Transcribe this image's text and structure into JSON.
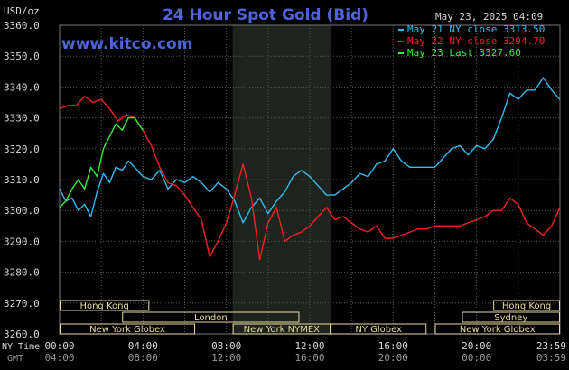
{
  "header": {
    "title": "24 Hour Spot Gold (Bid)",
    "site": "www.kitco.com",
    "timestamp": "May 23, 2025 04:09",
    "unit": "USD/oz"
  },
  "legend": [
    {
      "text": "May 21 NY close 3313.50",
      "color": "#33bbee"
    },
    {
      "text": "May 22 NY close 3294.70",
      "color": "#ee2222"
    },
    {
      "text": "May 23 Last 3327.60",
      "color": "#33ee33"
    }
  ],
  "colors": {
    "background": "#000000",
    "grid": "#555555",
    "axis_text": "#d8d8d8",
    "title": "#4f63dd",
    "session_box": "#e8dca0",
    "nymex_shade": "#1e231e"
  },
  "sessions": [
    {
      "label": "Hong Kong",
      "row": 0,
      "start": 0,
      "end": 4.3
    },
    {
      "label": "Hong Kong",
      "row": 0,
      "start": 20.8,
      "end": 24
    },
    {
      "label": "London",
      "row": 1,
      "start": 3.0,
      "end": 11.5
    },
    {
      "label": "Sydney",
      "row": 1,
      "start": 19.3,
      "end": 24
    },
    {
      "label": "New York Globex",
      "row": 2,
      "start": 0,
      "end": 6.5
    },
    {
      "label": "New York NYMEX",
      "row": 2,
      "start": 8.3,
      "end": 13.0
    },
    {
      "label": "NY Globex",
      "row": 2,
      "start": 13.0,
      "end": 17.6
    },
    {
      "label": "New York Globex",
      "row": 2,
      "start": 18.0,
      "end": 24
    }
  ],
  "time_labels": {
    "row1_label": "NY Time",
    "row2_label": "GMT",
    "ny": [
      "00:00",
      "04:00",
      "08:00",
      "12:00",
      "16:00",
      "20:00",
      "23:59"
    ],
    "gmt": [
      "04:00",
      "08:00",
      "12:00",
      "16:00",
      "20:00",
      "00:00",
      "03:59"
    ]
  },
  "chart_data": {
    "type": "line",
    "title": "24 Hour Spot Gold (Bid)",
    "ylabel": "USD/oz",
    "ylim": [
      3260,
      3360
    ],
    "xlim": [
      0,
      24
    ],
    "grid": true,
    "yticks": [
      "3360.0",
      "3350.0",
      "3340.0",
      "3330.0",
      "3320.0",
      "3310.0",
      "3300.0",
      "3290.0",
      "3280.0",
      "3270.0",
      "3260.0"
    ],
    "nymex_shade": [
      8.3,
      13.0
    ],
    "series": [
      {
        "name": "May 21 NY close 3313.50",
        "color": "#33bbee",
        "x": [
          0,
          0.3,
          0.6,
          0.9,
          1.2,
          1.5,
          1.8,
          2.1,
          2.4,
          2.7,
          3.0,
          3.3,
          3.6,
          4.0,
          4.4,
          4.8,
          5.2,
          5.6,
          6.0,
          6.4,
          6.8,
          7.2,
          7.6,
          8.0,
          8.4,
          8.8,
          9.2,
          9.6,
          10.0,
          10.4,
          10.8,
          11.2,
          11.6,
          12.0,
          12.4,
          12.8,
          13.2,
          13.6,
          14.0,
          14.4,
          14.8,
          15.2,
          15.6,
          16.0,
          16.4,
          16.8,
          17.2,
          17.6,
          18.0,
          18.4,
          18.8,
          19.2,
          19.6,
          20.0,
          20.4,
          20.8,
          21.2,
          21.6,
          22.0,
          22.4,
          22.8,
          23.2,
          23.6,
          23.99
        ],
        "y": [
          3307,
          3303,
          3304,
          3300,
          3302,
          3298,
          3306,
          3312,
          3309,
          3314,
          3313,
          3316,
          3314,
          3311,
          3310,
          3313,
          3307,
          3310,
          3309,
          3311,
          3309,
          3306,
          3309,
          3307,
          3303,
          3296,
          3301,
          3304,
          3299,
          3303,
          3306,
          3311,
          3313,
          3311,
          3308,
          3305,
          3305,
          3307,
          3309,
          3312,
          3311,
          3315,
          3316,
          3320,
          3316,
          3314,
          3314,
          3314,
          3314,
          3317,
          3320,
          3321,
          3318,
          3321,
          3320,
          3323,
          3330,
          3338,
          3336,
          3339,
          3339,
          3343,
          3339,
          3336
        ]
      },
      {
        "name": "May 22 NY close 3294.70",
        "color": "#ee2222",
        "x": [
          0,
          0.4,
          0.8,
          1.2,
          1.6,
          2.0,
          2.4,
          2.8,
          3.2,
          3.6,
          4.0,
          4.4,
          4.8,
          5.2,
          5.6,
          6.0,
          6.4,
          6.8,
          7.2,
          7.6,
          8.0,
          8.4,
          8.8,
          9.2,
          9.6,
          10.0,
          10.4,
          10.8,
          11.2,
          11.6,
          12.0,
          12.4,
          12.8,
          13.2,
          13.6,
          14.0,
          14.4,
          14.8,
          15.2,
          15.6,
          16.0,
          16.4,
          16.8,
          17.2,
          17.6,
          18.0,
          18.4,
          18.8,
          19.2,
          19.6,
          20.0,
          20.4,
          20.8,
          21.2,
          21.6,
          22.0,
          22.4,
          22.8,
          23.2,
          23.6,
          23.99
        ],
        "y": [
          3333,
          3334,
          3334,
          3337,
          3335,
          3336,
          3333,
          3329,
          3331,
          3330,
          3326,
          3321,
          3314,
          3309,
          3308,
          3305,
          3301,
          3297,
          3285,
          3290,
          3296,
          3305,
          3315,
          3304,
          3284,
          3296,
          3301,
          3290,
          3292,
          3293,
          3295,
          3298,
          3301,
          3297,
          3298,
          3296,
          3294,
          3293,
          3295,
          3291,
          3291,
          3292,
          3293,
          3294,
          3294,
          3295,
          3295,
          3295,
          3295,
          3296,
          3297,
          3298,
          3300,
          3300,
          3304,
          3302,
          3296,
          3294,
          3292,
          3295,
          3301
        ]
      },
      {
        "name": "May 23 Last 3327.60",
        "color": "#33ee33",
        "x": [
          0,
          0.3,
          0.6,
          0.9,
          1.2,
          1.5,
          1.8,
          2.1,
          2.4,
          2.7,
          3.0,
          3.3,
          3.6,
          4.0
        ],
        "y": [
          3301,
          3303,
          3307,
          3310,
          3307,
          3314,
          3311,
          3320,
          3324,
          3328,
          3326,
          3330,
          3330,
          3326
        ]
      }
    ]
  }
}
